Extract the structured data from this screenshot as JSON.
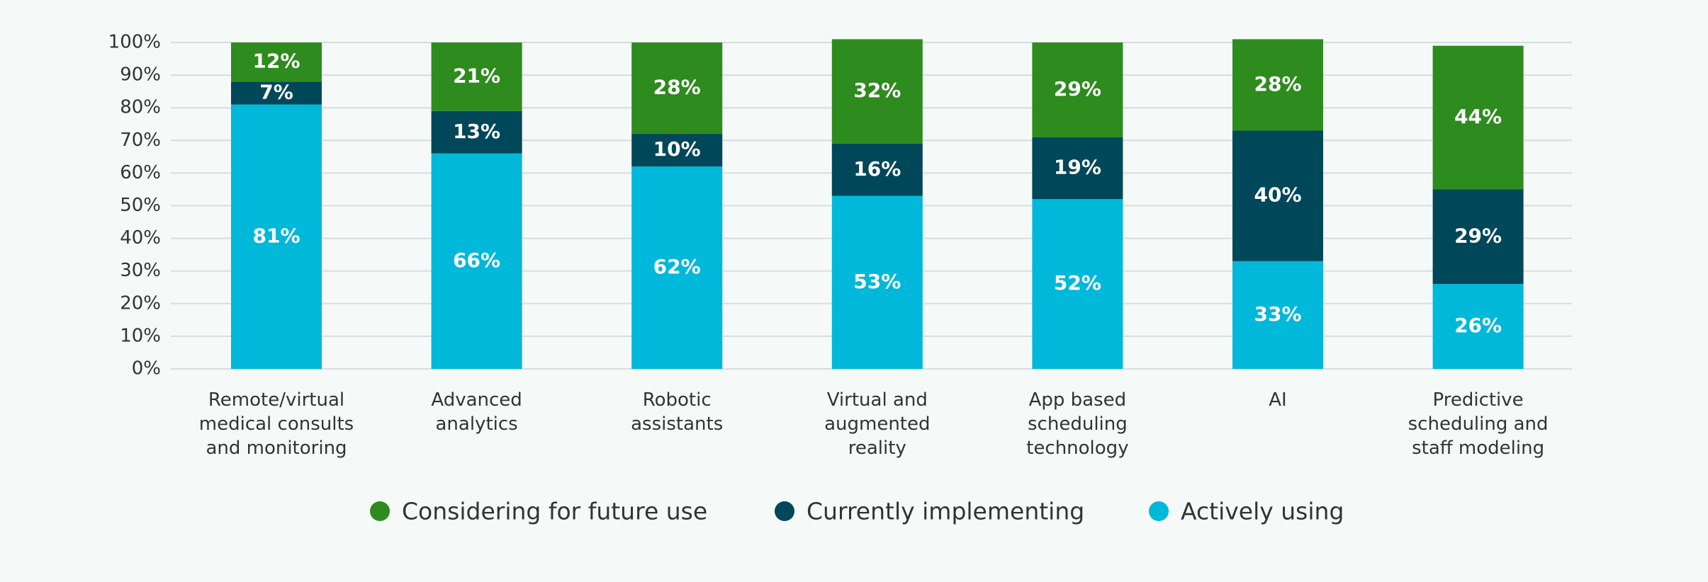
{
  "chart_data": {
    "type": "stacked_bar",
    "categories": [
      "Remote/virtual\nmedical consults\nand monitoring",
      "Advanced\nanalytics",
      "Robotic\nassistants",
      "Virtual and\naugmented\nreality",
      "App based\nscheduling\ntechnology",
      "AI",
      "Predictive\nscheduling and\nstaff modeling"
    ],
    "series": [
      {
        "name": "Considering for future use",
        "color": "#2e8b1e",
        "values": [
          12,
          21,
          28,
          32,
          29,
          28,
          44
        ],
        "value_labels": [
          "12%",
          "21%",
          "28%",
          "32%",
          "29%",
          "28%",
          "44%"
        ]
      },
      {
        "name": "Currently implementing",
        "color": "#00475a",
        "values": [
          7,
          13,
          10,
          16,
          19,
          40,
          29
        ],
        "value_labels": [
          "7%",
          "13%",
          "10%",
          "16%",
          "19%",
          "40%",
          "29%"
        ]
      },
      {
        "name": "Actively using",
        "color": "#00b8d9",
        "values": [
          81,
          66,
          62,
          53,
          52,
          33,
          26
        ],
        "value_labels": [
          "81%",
          "66%",
          "62%",
          "53%",
          "52%",
          "33%",
          "26%"
        ]
      }
    ],
    "ylim": [
      0,
      100
    ],
    "yticks": [
      {
        "value": 0,
        "label": "0%"
      },
      {
        "value": 10,
        "label": "10%"
      },
      {
        "value": 20,
        "label": "20%"
      },
      {
        "value": 30,
        "label": "30%"
      },
      {
        "value": 40,
        "label": "40%"
      },
      {
        "value": 50,
        "label": "50%"
      },
      {
        "value": 60,
        "label": "60%"
      },
      {
        "value": 70,
        "label": "70%"
      },
      {
        "value": 80,
        "label": "80%"
      },
      {
        "value": 90,
        "label": "90%"
      },
      {
        "value": 100,
        "label": "100%"
      }
    ],
    "grid": true
  }
}
